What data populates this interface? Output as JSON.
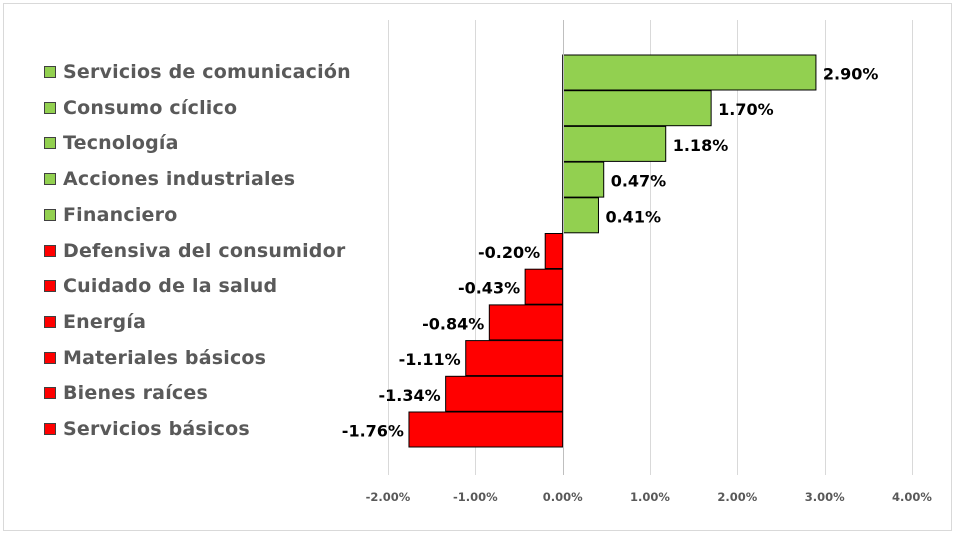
{
  "chart_data": {
    "type": "bar",
    "orientation": "horizontal",
    "title": "",
    "xlabel": "",
    "ylabel": "",
    "xlim": [
      -2.0,
      4.0
    ],
    "x_ticks": [
      -2.0,
      -1.0,
      0.0,
      1.0,
      2.0,
      3.0,
      4.0
    ],
    "tick_labels": [
      "-2.00%",
      "-1.00%",
      "0.00%",
      "1.00%",
      "2.00%",
      "3.00%",
      "4.00%"
    ],
    "grid": "vertical",
    "legend_placement": "left",
    "colors": {
      "positive": "#92d050",
      "negative": "#ff0000",
      "bar_border": "#000000",
      "grid": "#d9d9d9",
      "axis": "#bfbfbf"
    },
    "categories": [
      "Servicios de comunicación",
      "Consumo cíclico",
      "Tecnología",
      "Acciones industriales",
      "Financiero",
      "Defensiva del consumidor",
      "Cuidado de la salud",
      "Energía",
      "Materiales básicos",
      "Bienes raíces",
      "Servicios básicos"
    ],
    "values": [
      2.9,
      1.7,
      1.18,
      0.47,
      0.41,
      -0.2,
      -0.43,
      -0.84,
      -1.11,
      -1.34,
      -1.76
    ],
    "value_labels": [
      "2.90%",
      "1.70%",
      "1.18%",
      "0.47%",
      "0.41%",
      "-0.20%",
      "-0.43%",
      "-0.84%",
      "-1.11%",
      "-1.34%",
      "-1.76%"
    ]
  }
}
